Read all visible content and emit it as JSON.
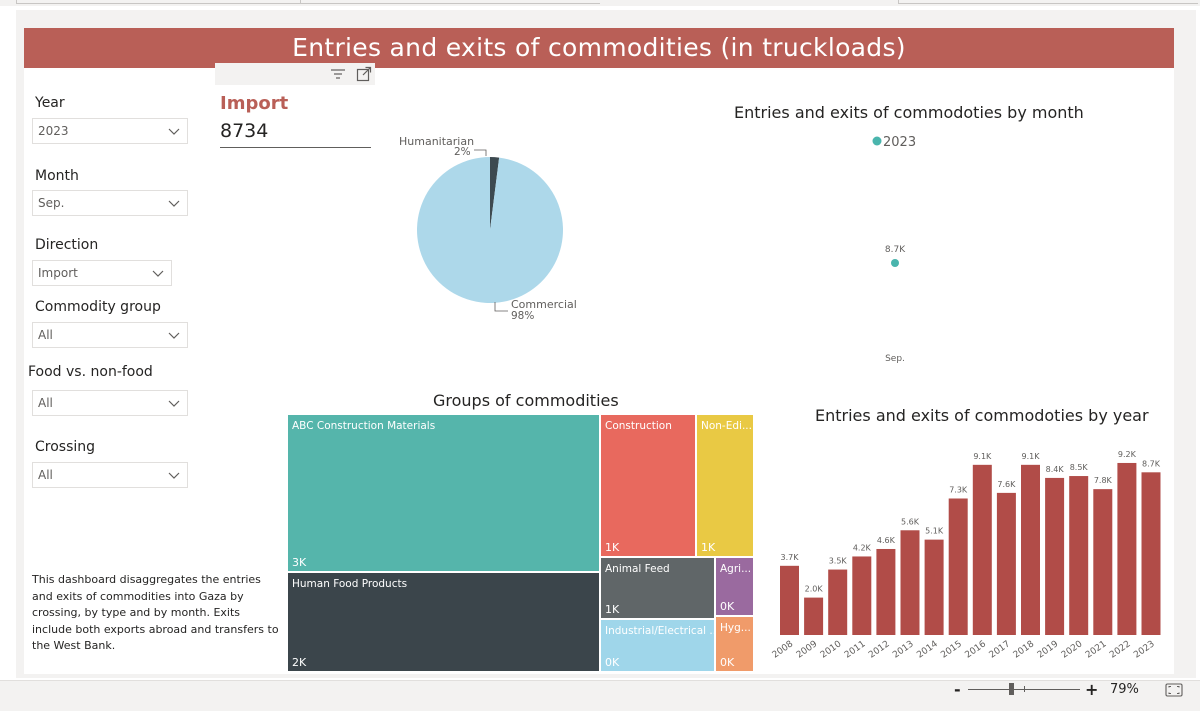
{
  "title": "Entries and exits of commodities (in truckloads)",
  "slicers": [
    {
      "label": "Year",
      "value": "2023"
    },
    {
      "label": "Month",
      "value": "Sep."
    },
    {
      "label": "Direction",
      "value": "Import"
    },
    {
      "label": "Commodity group",
      "value": "All"
    },
    {
      "label": "Food vs. non-food",
      "value": "All"
    },
    {
      "label": "Crossing",
      "value": "All"
    }
  ],
  "kpi": {
    "title": "Import",
    "value": "8734"
  },
  "pie": {
    "slices": [
      {
        "name": "Humanitarian",
        "pct": "2%",
        "value": 2,
        "color": "#3d4a50"
      },
      {
        "name": "Commercial",
        "pct": "98%",
        "value": 98,
        "color": "#add8ea"
      }
    ]
  },
  "month_chart": {
    "title": "Entries and exits of commodoties by month",
    "legend": "2023",
    "point_label": "8.7K",
    "x_label": "Sep.",
    "color": "#4ab5ad"
  },
  "treemap": {
    "title": "Groups of commodities",
    "cells": [
      {
        "label": "ABC Construction Materials",
        "value": "3K",
        "color": "#55b5ab"
      },
      {
        "label": "Human Food Products",
        "value": "2K",
        "color": "#3b454b"
      },
      {
        "label": "Construction",
        "value": "1K",
        "color": "#e8695e"
      },
      {
        "label": "Non-Edi...",
        "value": "1K",
        "color": "#e9c944"
      },
      {
        "label": "Animal Feed",
        "value": "1K",
        "color": "#606668"
      },
      {
        "label": "Agri...",
        "value": "0K",
        "color": "#9a6a9f"
      },
      {
        "label": "Industrial/Electrical ...",
        "value": "0K",
        "color": "#9fd6ea"
      },
      {
        "label": "Hyg...",
        "value": "0K",
        "color": "#f09b6a"
      }
    ]
  },
  "chart_data": {
    "type": "bar",
    "title": "Entries and exits of commodoties by year",
    "categories": [
      "2008",
      "2009",
      "2010",
      "2011",
      "2012",
      "2013",
      "2014",
      "2015",
      "2016",
      "2017",
      "2018",
      "2019",
      "2020",
      "2021",
      "2022",
      "2023"
    ],
    "values": [
      3.7,
      2.0,
      3.5,
      4.2,
      4.6,
      5.6,
      5.1,
      7.3,
      9.1,
      7.6,
      9.1,
      8.4,
      8.5,
      7.8,
      9.2,
      8.7
    ],
    "labels": [
      "3.7K",
      "2.0K",
      "3.5K",
      "4.2K",
      "4.6K",
      "5.6K",
      "5.1K",
      "7.3K",
      "9.1K",
      "7.6K",
      "9.1K",
      "8.4K",
      "8.5K",
      "7.8K",
      "9.2K",
      "8.7K"
    ],
    "ylim": [
      0,
      10
    ],
    "color": "#b14c48"
  },
  "description": "This dashboard disaggregates  the entries and exits of commodities into Gaza by crossing, by type and by month. Exits include both exports abroad and transfers to the West Bank.",
  "zoom": {
    "minus": "-",
    "plus": "+",
    "level": "79%"
  }
}
